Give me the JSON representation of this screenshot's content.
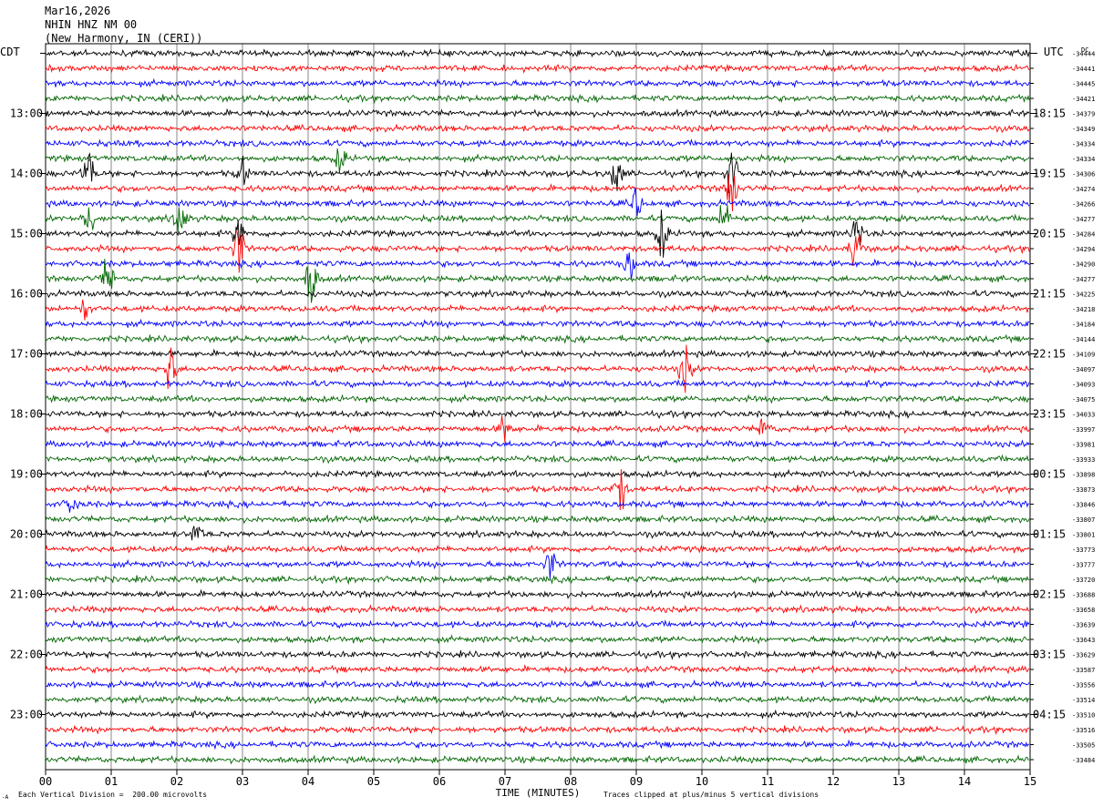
{
  "header": {
    "date": "Mar16,2026",
    "station": "NHIN HNZ NM 00",
    "location": "(New Harmony, IN (CERI))"
  },
  "chart_data": {
    "type": "line",
    "title": "",
    "left_tz_label": "CDT",
    "right_tz_label": "UTC",
    "dc_label": "DC",
    "xlabel": "TIME (MINUTES)",
    "x_ticks": [
      "00",
      "01",
      "02",
      "03",
      "04",
      "05",
      "06",
      "07",
      "08",
      "09",
      "10",
      "11",
      "12",
      "13",
      "14",
      "15"
    ],
    "xlim": [
      0,
      15
    ],
    "left_hour_labels": [
      "13:00",
      "14:00",
      "15:00",
      "16:00",
      "17:00",
      "18:00",
      "19:00",
      "20:00",
      "21:00",
      "22:00",
      "23:00"
    ],
    "right_hour_labels": [
      "18:15",
      "19:15",
      "20:15",
      "21:15",
      "22:15",
      "23:15",
      "00:15",
      "01:15",
      "02:15",
      "03:15",
      "04:15"
    ],
    "dc_offsets": [
      -34444,
      -34441,
      -34445,
      -34421,
      -34379,
      -34349,
      -34334,
      -34334,
      -34306,
      -34274,
      -34266,
      -34277,
      -34284,
      -34294,
      -34290,
      -34277,
      -34225,
      -34218,
      -34184,
      -34144,
      -34109,
      -34097,
      -34093,
      -34075,
      -34033,
      -33997,
      -33981,
      -33933,
      -33898,
      -33873,
      -33846,
      -33807,
      -33801,
      -33773,
      -33777,
      -33720,
      -33688,
      -33658,
      -33639,
      -33643,
      -33629,
      -33587,
      -33556,
      -33514,
      -33510,
      -33516,
      -33505,
      -33484
    ],
    "trace_colors": [
      "#000000",
      "#ff0000",
      "#0000ff",
      "#006600"
    ],
    "events": [
      {
        "trace": 7,
        "minute": 4.5,
        "amp": 1.3
      },
      {
        "trace": 8,
        "minute": 0.65,
        "amp": 2.2
      },
      {
        "trace": 8,
        "minute": 3.0,
        "amp": 1.4
      },
      {
        "trace": 8,
        "minute": 8.7,
        "amp": 2.0
      },
      {
        "trace": 8,
        "minute": 10.45,
        "amp": 2.4
      },
      {
        "trace": 9,
        "minute": 10.45,
        "amp": 2.6
      },
      {
        "trace": 10,
        "minute": 9.0,
        "amp": 1.6
      },
      {
        "trace": 11,
        "minute": 0.65,
        "amp": 2.0
      },
      {
        "trace": 11,
        "minute": 2.05,
        "amp": 2.4
      },
      {
        "trace": 11,
        "minute": 10.35,
        "amp": 2.0
      },
      {
        "trace": 12,
        "minute": 2.95,
        "amp": 1.6
      },
      {
        "trace": 12,
        "minute": 9.4,
        "amp": 2.4
      },
      {
        "trace": 12,
        "minute": 12.35,
        "amp": 2.0
      },
      {
        "trace": 13,
        "minute": 2.95,
        "amp": 2.6
      },
      {
        "trace": 13,
        "minute": 12.35,
        "amp": 2.4
      },
      {
        "trace": 14,
        "minute": 8.9,
        "amp": 1.5
      },
      {
        "trace": 15,
        "minute": 0.95,
        "amp": 2.0
      },
      {
        "trace": 15,
        "minute": 4.05,
        "amp": 2.6
      },
      {
        "trace": 17,
        "minute": 0.6,
        "amp": 1.0
      },
      {
        "trace": 21,
        "minute": 1.9,
        "amp": 2.4
      },
      {
        "trace": 21,
        "minute": 9.75,
        "amp": 2.6
      },
      {
        "trace": 25,
        "minute": 7.0,
        "amp": 1.5
      },
      {
        "trace": 25,
        "minute": 10.95,
        "amp": 1.3
      },
      {
        "trace": 29,
        "minute": 8.75,
        "amp": 2.2
      },
      {
        "trace": 30,
        "minute": 0.4,
        "amp": 1.0
      },
      {
        "trace": 32,
        "minute": 2.3,
        "amp": 1.2
      },
      {
        "trace": 34,
        "minute": 7.7,
        "amp": 1.4
      }
    ]
  },
  "footer": {
    "scale_note": "Each Vertical Division =  200.00 microvolts",
    "clip_note": "Traces clipped at plus/minus 5 vertical divisions",
    "corner_mark": "-A"
  }
}
